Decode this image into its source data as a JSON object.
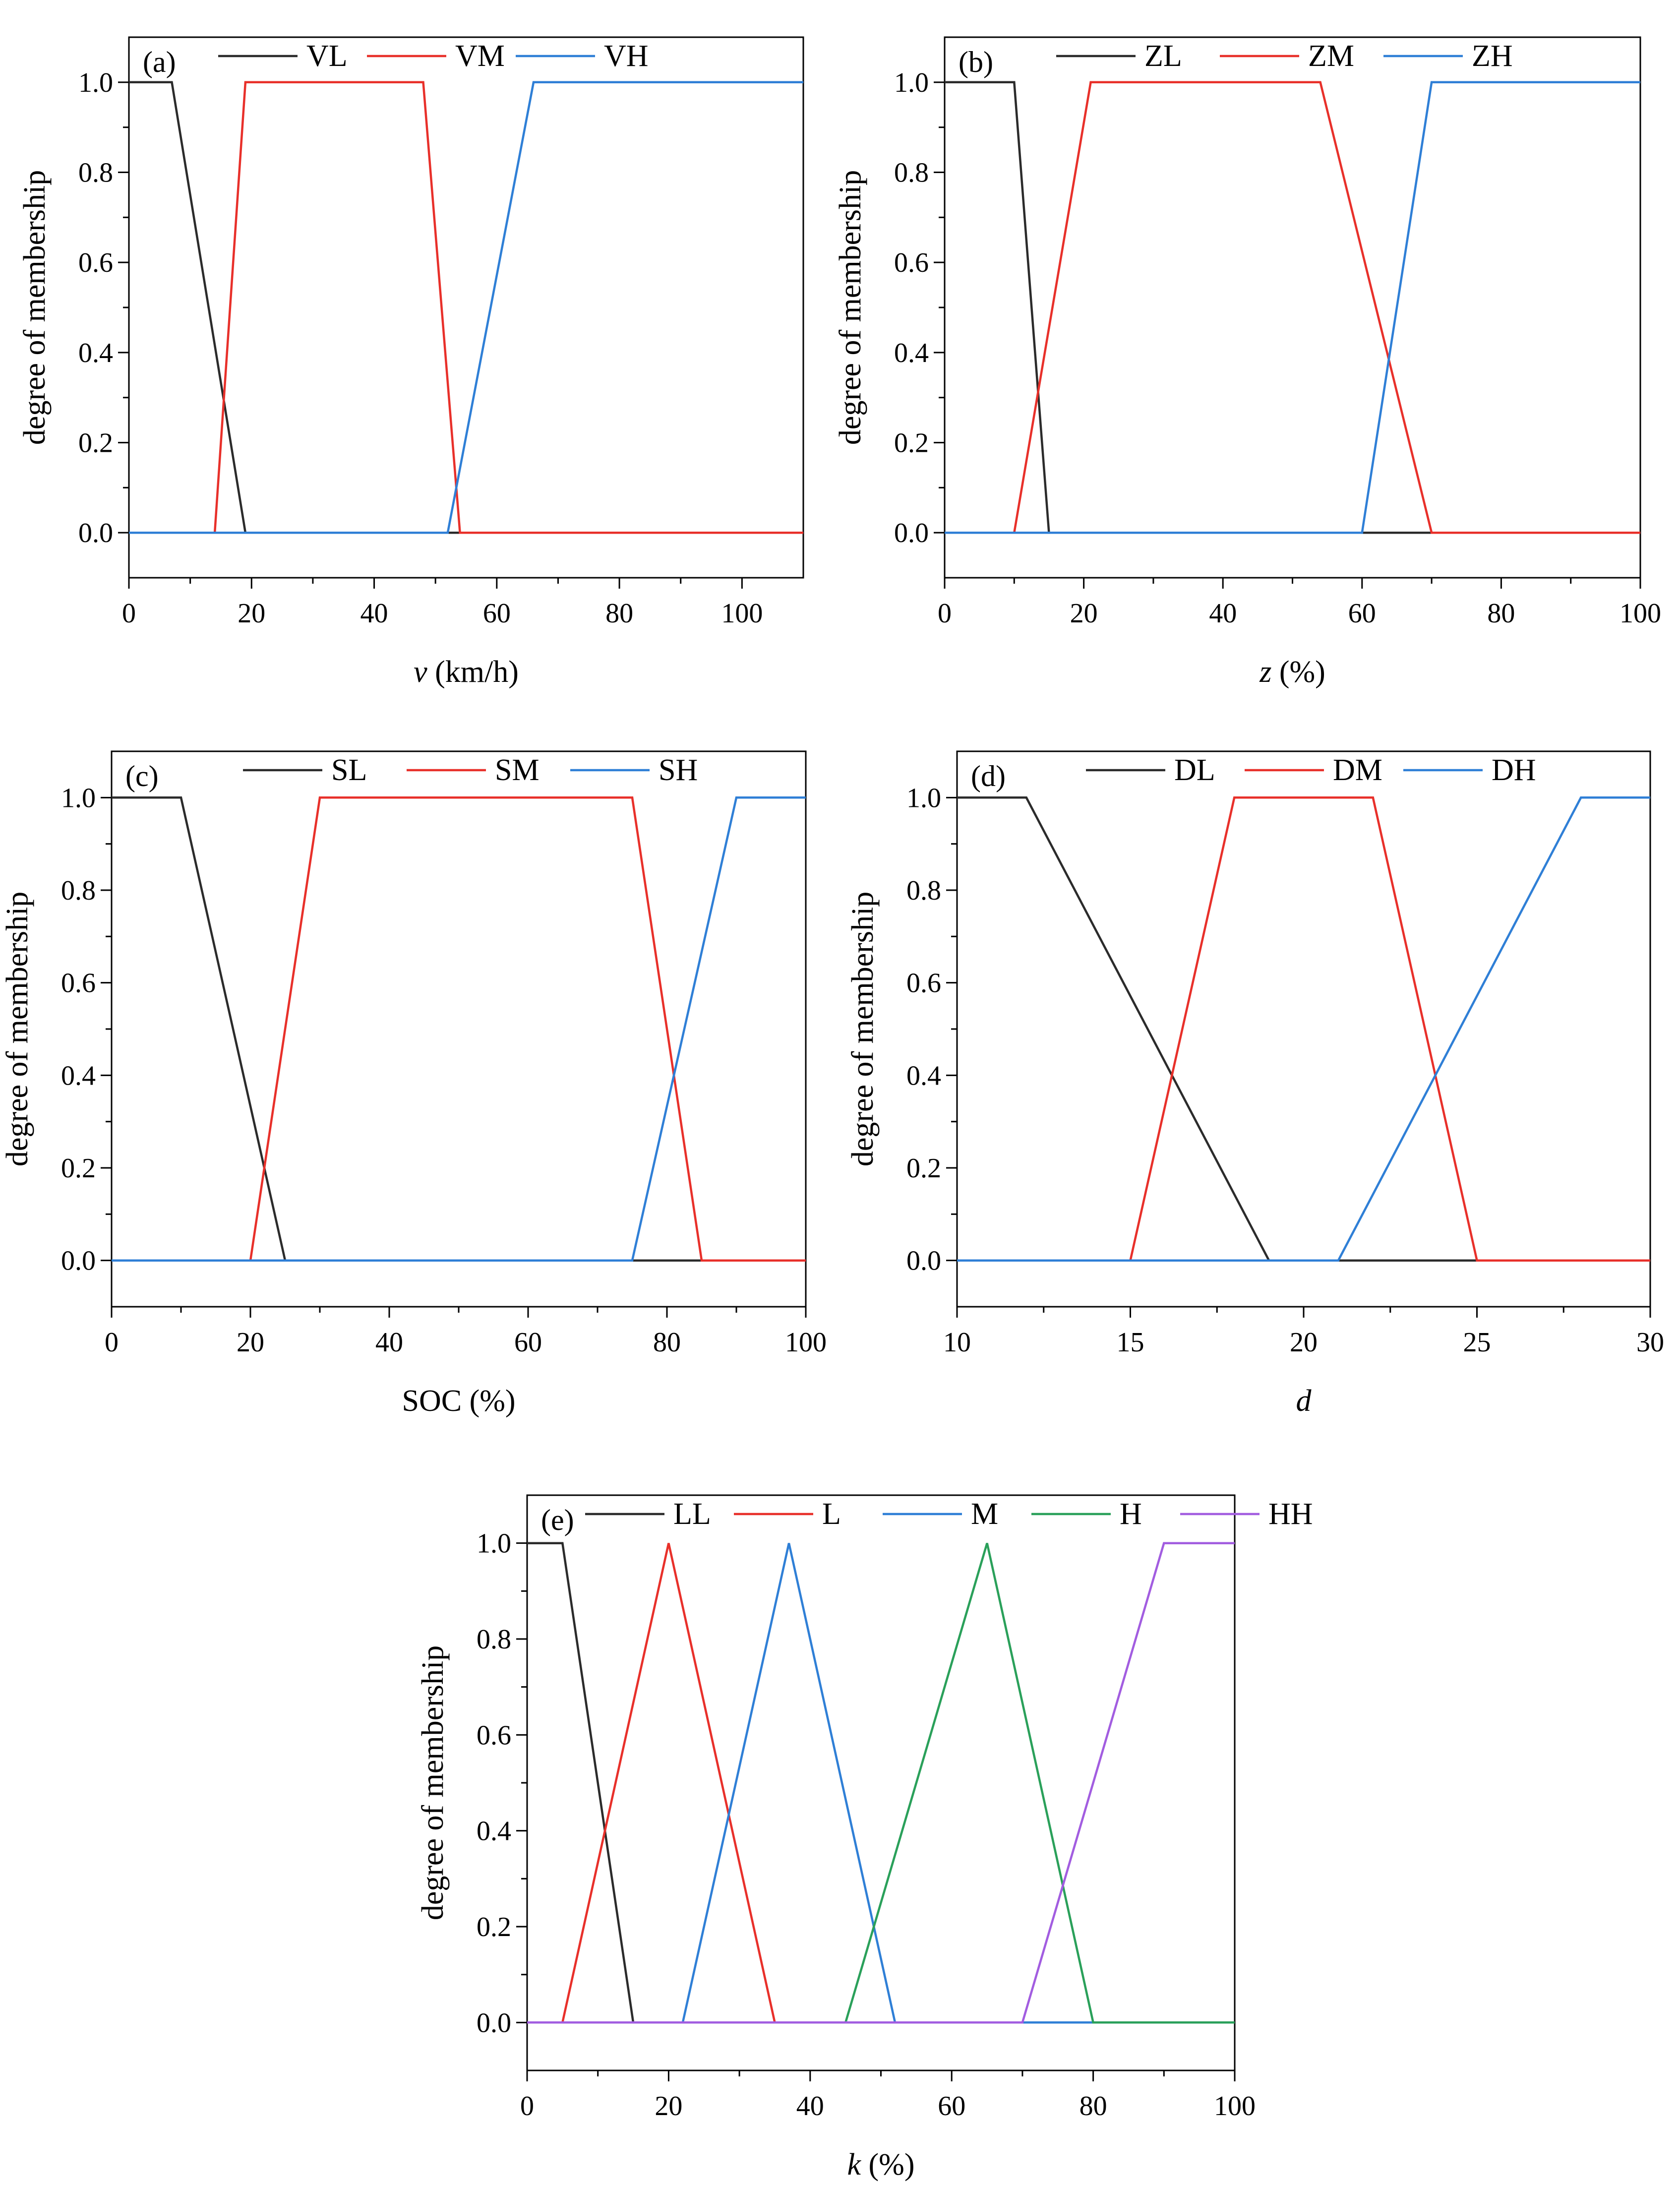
{
  "figure": {
    "ylabel": "degree of membership"
  },
  "chart_data": [
    {
      "id": "a",
      "type": "line",
      "panel_label": "(a)",
      "xlabel_var": "v",
      "xlabel_unit": " (km/h)",
      "xlim": [
        0,
        110
      ],
      "ylim": [
        -0.1,
        1.1
      ],
      "xticks": [
        0,
        20,
        40,
        60,
        80,
        100
      ],
      "yticks": [
        0.0,
        0.2,
        0.4,
        0.6,
        0.8,
        1.0
      ],
      "series": [
        {
          "name": "VL",
          "color": "#2b2b2b",
          "x": [
            0,
            7,
            19,
            110
          ],
          "y": [
            1,
            1,
            0,
            0
          ]
        },
        {
          "name": "VM",
          "color": "#e8302a",
          "x": [
            0,
            14,
            19,
            48,
            54,
            110
          ],
          "y": [
            0,
            0,
            1,
            1,
            0,
            0
          ]
        },
        {
          "name": "VH",
          "color": "#2f7fd6",
          "x": [
            0,
            52,
            66,
            110
          ],
          "y": [
            0,
            0,
            1,
            1
          ]
        }
      ]
    },
    {
      "id": "b",
      "type": "line",
      "panel_label": "(b)",
      "xlabel_var": "z",
      "xlabel_unit": " (%)",
      "xlim": [
        0,
        100
      ],
      "ylim": [
        -0.1,
        1.1
      ],
      "xticks": [
        0,
        20,
        40,
        60,
        80,
        100
      ],
      "yticks": [
        0.0,
        0.2,
        0.4,
        0.6,
        0.8,
        1.0
      ],
      "series": [
        {
          "name": "ZL",
          "color": "#2b2b2b",
          "x": [
            0,
            10,
            15,
            100
          ],
          "y": [
            1,
            1,
            0,
            0
          ]
        },
        {
          "name": "ZM",
          "color": "#e8302a",
          "x": [
            0,
            10,
            21,
            54,
            70,
            100
          ],
          "y": [
            0,
            0,
            1,
            1,
            0,
            0
          ]
        },
        {
          "name": "ZH",
          "color": "#2f7fd6",
          "x": [
            0,
            60,
            70,
            100
          ],
          "y": [
            0,
            0,
            1,
            1
          ]
        }
      ]
    },
    {
      "id": "c",
      "type": "line",
      "panel_label": "(c)",
      "xlabel_var": "",
      "xlabel_unit": "SOC (%)",
      "xlim": [
        0,
        100
      ],
      "ylim": [
        -0.1,
        1.1
      ],
      "xticks": [
        0,
        20,
        40,
        60,
        80,
        100
      ],
      "yticks": [
        0.0,
        0.2,
        0.4,
        0.6,
        0.8,
        1.0
      ],
      "series": [
        {
          "name": "SL",
          "color": "#2b2b2b",
          "x": [
            0,
            10,
            25,
            100
          ],
          "y": [
            1,
            1,
            0,
            0
          ]
        },
        {
          "name": "SM",
          "color": "#e8302a",
          "x": [
            0,
            20,
            30,
            75,
            85,
            100
          ],
          "y": [
            0,
            0,
            1,
            1,
            0,
            0
          ]
        },
        {
          "name": "SH",
          "color": "#2f7fd6",
          "x": [
            0,
            75,
            90,
            100
          ],
          "y": [
            0,
            0,
            1,
            1
          ]
        }
      ]
    },
    {
      "id": "d",
      "type": "line",
      "panel_label": "(d)",
      "xlabel_var": "d",
      "xlabel_unit": "",
      "xlim": [
        10,
        30
      ],
      "ylim": [
        -0.1,
        1.1
      ],
      "xticks": [
        10,
        15,
        20,
        25,
        30
      ],
      "yticks": [
        0.0,
        0.2,
        0.4,
        0.6,
        0.8,
        1.0
      ],
      "series": [
        {
          "name": "DL",
          "color": "#2b2b2b",
          "x": [
            10,
            12,
            19,
            30
          ],
          "y": [
            1,
            1,
            0,
            0
          ]
        },
        {
          "name": "DM",
          "color": "#e8302a",
          "x": [
            10,
            15,
            18,
            22,
            25,
            30
          ],
          "y": [
            0,
            0,
            1,
            1,
            0,
            0
          ]
        },
        {
          "name": "DH",
          "color": "#2f7fd6",
          "x": [
            10,
            21,
            28,
            30
          ],
          "y": [
            0,
            0,
            1,
            1
          ]
        }
      ]
    },
    {
      "id": "e",
      "type": "line",
      "panel_label": "(e)",
      "xlabel_var": "k",
      "xlabel_unit": " (%)",
      "xlim": [
        0,
        100
      ],
      "ylim": [
        -0.1,
        1.1
      ],
      "xticks": [
        0,
        20,
        40,
        60,
        80,
        100
      ],
      "yticks": [
        0.0,
        0.2,
        0.4,
        0.6,
        0.8,
        1.0
      ],
      "series": [
        {
          "name": "LL",
          "color": "#2b2b2b",
          "x": [
            0,
            5,
            15,
            100
          ],
          "y": [
            1,
            1,
            0,
            0
          ]
        },
        {
          "name": "L",
          "color": "#e8302a",
          "x": [
            0,
            5,
            20,
            35,
            100
          ],
          "y": [
            0,
            0,
            1,
            0,
            0
          ]
        },
        {
          "name": "M",
          "color": "#2f7fd6",
          "x": [
            0,
            22,
            37,
            52,
            100
          ],
          "y": [
            0,
            0,
            1,
            0,
            0
          ]
        },
        {
          "name": "H",
          "color": "#2aa05a",
          "x": [
            0,
            45,
            65,
            80,
            100
          ],
          "y": [
            0,
            0,
            1,
            0,
            0
          ]
        },
        {
          "name": "HH",
          "color": "#a25de0",
          "x": [
            0,
            70,
            90,
            100
          ],
          "y": [
            0,
            0,
            1,
            1
          ]
        }
      ]
    }
  ]
}
